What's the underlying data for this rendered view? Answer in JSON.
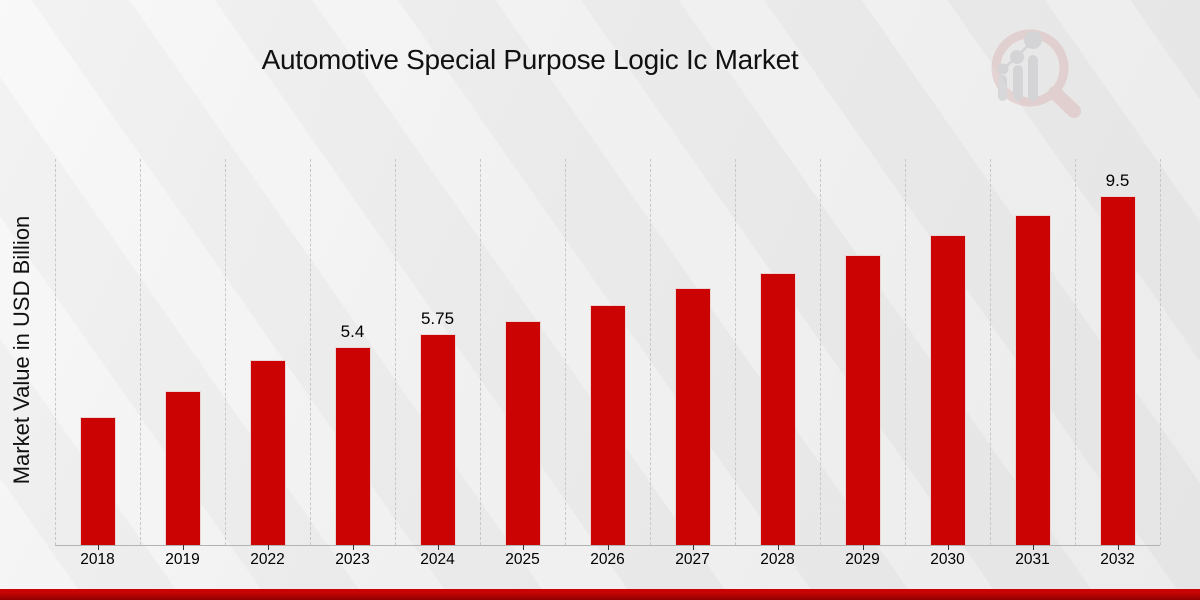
{
  "header": {
    "title": "Automotive Special Purpose Logic Ic Market",
    "logo_icon": "magnifier-bar-chart-logo-icon"
  },
  "chart_data": {
    "type": "bar",
    "title": "Automotive Special Purpose Logic Ic Market",
    "xlabel": "",
    "ylabel": "Market Value in USD Billion",
    "categories": [
      "2018",
      "2019",
      "2022",
      "2023",
      "2024",
      "2025",
      "2026",
      "2027",
      "2028",
      "2029",
      "2030",
      "2031",
      "2032"
    ],
    "values": [
      3.5,
      4.2,
      5.05,
      5.4,
      5.75,
      6.1,
      6.55,
      7.0,
      7.4,
      7.9,
      8.45,
      9.0,
      9.5
    ],
    "bar_labels": [
      "",
      "",
      "",
      "5.4",
      "5.75",
      "",
      "",
      "",
      "",
      "",
      "",
      "",
      "9.5"
    ],
    "bar_color": "#cc0303",
    "background_color": "#ececec",
    "gridlines": "vertical-dashed",
    "legend_position": "none",
    "ylim": [
      0,
      10.5
    ]
  },
  "footer": {
    "stripe_color": "#b70202"
  }
}
